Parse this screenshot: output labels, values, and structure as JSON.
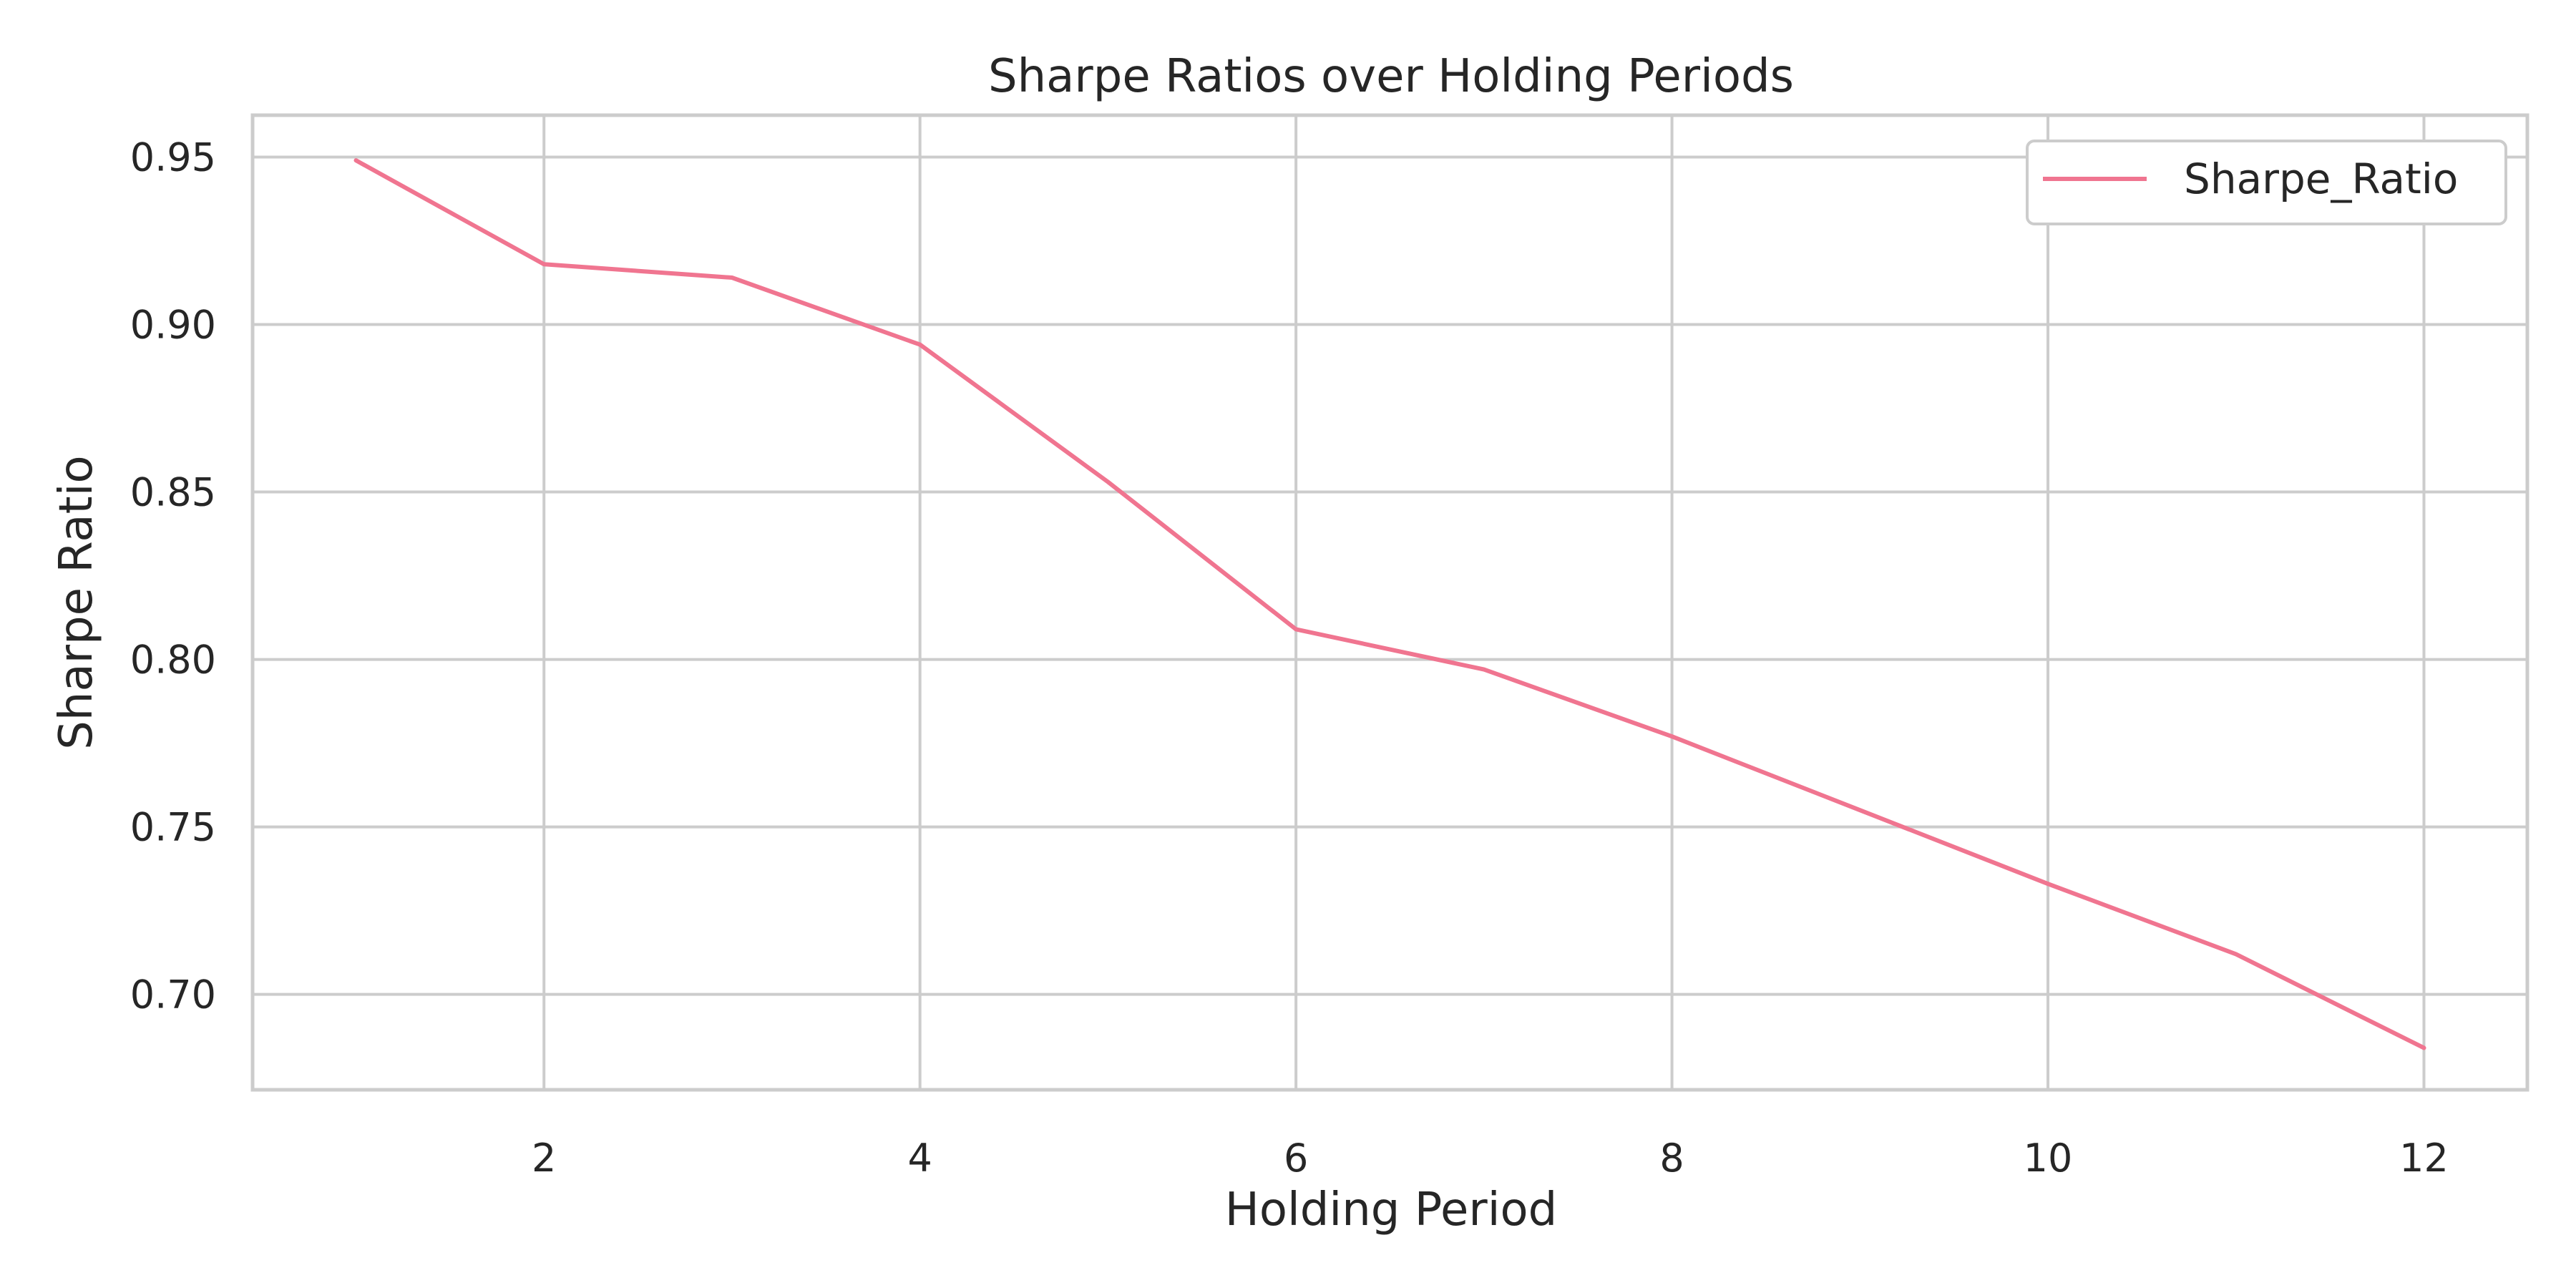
{
  "chart_data": {
    "type": "line",
    "title": "Sharpe Ratios over Holding Periods",
    "xlabel": "Holding Period",
    "ylabel": "Sharpe Ratio",
    "x": [
      1,
      2,
      3,
      4,
      5,
      6,
      7,
      8,
      9,
      10,
      11,
      12
    ],
    "series": [
      {
        "name": "Sharpe_Ratio",
        "color": "#f07590",
        "values": [
          0.949,
          0.918,
          0.914,
          0.894,
          0.853,
          0.809,
          0.797,
          0.777,
          0.755,
          0.733,
          0.712,
          0.684
        ]
      }
    ],
    "xlim": [
      0.45,
      12.55
    ],
    "ylim": [
      0.6715,
      0.9625
    ],
    "xticks": [
      2,
      4,
      6,
      8,
      10,
      12
    ],
    "xtick_labels": [
      "2",
      "4",
      "6",
      "8",
      "10",
      "12"
    ],
    "yticks": [
      0.7,
      0.75,
      0.8,
      0.85,
      0.9,
      0.95
    ],
    "ytick_labels": [
      "0.70",
      "0.75",
      "0.80",
      "0.85",
      "0.90",
      "0.95"
    ],
    "grid": true,
    "legend_position": "top-right"
  }
}
